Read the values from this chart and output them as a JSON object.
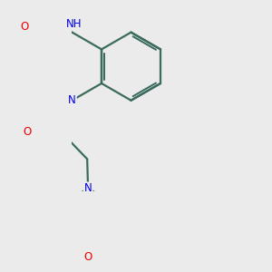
{
  "bg_color": "#ebebeb",
  "bond_color": "#3a6b5e",
  "bond_width": 1.6,
  "atom_colors": {
    "N": "#0000ee",
    "O": "#ee0000"
  },
  "font_size_atom": 8.5
}
